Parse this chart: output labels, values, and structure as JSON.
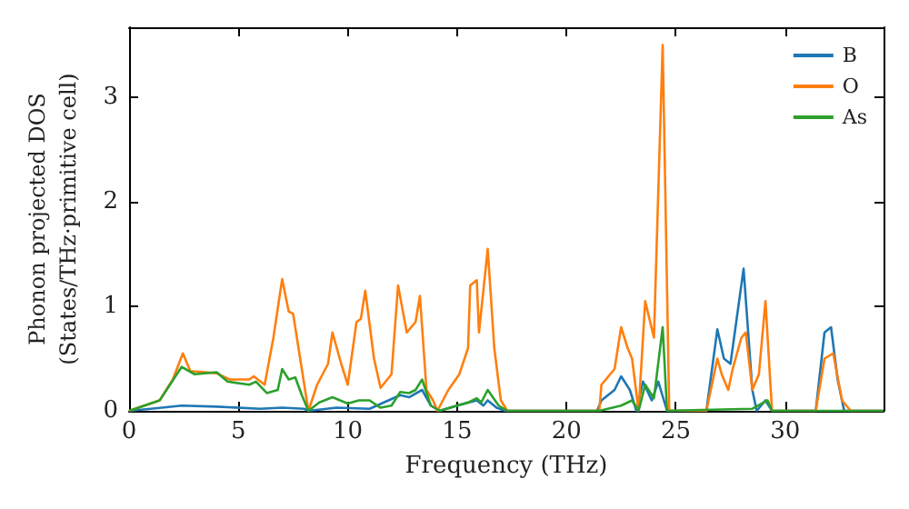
{
  "chart_data": {
    "type": "line",
    "xlabel": "Frequency (THz)",
    "ylabel": "Phonon projected DOS\n(States/THz·primitive cell)",
    "xlim": [
      0,
      34.5
    ],
    "xticks": [
      0,
      5,
      10,
      15,
      20,
      25,
      30
    ],
    "ylim": [
      0,
      3.67
    ],
    "yticks": [
      0,
      1,
      2,
      3
    ],
    "grid": false,
    "legend": "top right",
    "marker": "none",
    "line_style": "solid",
    "series": [
      {
        "name": "B",
        "color": "#1f77b4",
        "x": [
          0,
          1,
          2.4,
          4,
          6,
          7,
          8,
          8.2,
          9.5,
          11,
          12.4,
          12.8,
          13.4,
          13.8,
          14.2,
          15,
          15.9,
          16.2,
          16.4,
          16.8,
          17.2,
          21.4,
          21.6,
          22.2,
          22.5,
          22.9,
          23.2,
          23.5,
          23.9,
          24.2,
          24.6,
          26.4,
          26.9,
          27.2,
          27.5,
          28.1,
          28.5,
          28.7,
          29.1,
          29.4,
          31.4,
          31.8,
          32.1,
          32.4,
          32.7,
          34.5
        ],
        "values": [
          0,
          0.02,
          0.05,
          0.04,
          0.02,
          0.03,
          0.02,
          0,
          0.03,
          0.02,
          0.15,
          0.13,
          0.2,
          0.05,
          0,
          0.05,
          0.1,
          0.05,
          0.1,
          0.03,
          0,
          0,
          0.1,
          0.2,
          0.33,
          0.2,
          0,
          0.28,
          0.1,
          0.28,
          0,
          0,
          0.78,
          0.5,
          0.45,
          1.36,
          0.2,
          0,
          0.1,
          0,
          0,
          0.75,
          0.8,
          0.3,
          0,
          0
        ]
      },
      {
        "name": "O",
        "color": "#ff7f0e",
        "x": [
          0,
          1.4,
          2.0,
          2.46,
          2.8,
          4,
          4.6,
          5.5,
          5.7,
          6.2,
          6.6,
          7.0,
          7.3,
          7.5,
          8.2,
          8.6,
          9.1,
          9.3,
          9.7,
          10.0,
          10.4,
          10.6,
          10.8,
          11.2,
          11.5,
          12.0,
          12.3,
          12.7,
          13.1,
          13.3,
          13.6,
          13.9,
          14.1,
          14.6,
          15.1,
          15.5,
          15.6,
          15.9,
          16.0,
          16.4,
          16.7,
          17.0,
          17.3,
          21.5,
          21.6,
          22.2,
          22.5,
          22.8,
          23.0,
          23.3,
          23.6,
          24.0,
          24.4,
          24.7,
          26.4,
          26.9,
          27.1,
          27.4,
          27.6,
          28.0,
          28.2,
          28.5,
          28.8,
          29.1,
          29.4,
          31.4,
          31.8,
          32.2,
          32.6,
          33.0,
          34.5
        ],
        "values": [
          0,
          0.1,
          0.3,
          0.55,
          0.38,
          0.36,
          0.3,
          0.3,
          0.33,
          0.25,
          0.7,
          1.26,
          0.95,
          0.93,
          0,
          0.25,
          0.45,
          0.75,
          0.45,
          0.25,
          0.85,
          0.88,
          1.15,
          0.5,
          0.22,
          0.35,
          1.2,
          0.75,
          0.85,
          1.1,
          0.2,
          0.1,
          0,
          0.2,
          0.35,
          0.6,
          1.2,
          1.25,
          0.75,
          1.55,
          0.6,
          0.1,
          0,
          0,
          0.25,
          0.4,
          0.8,
          0.6,
          0.5,
          0,
          1.05,
          0.7,
          3.5,
          0,
          0,
          0.5,
          0.35,
          0.2,
          0.4,
          0.7,
          0.75,
          0.2,
          0.35,
          1.05,
          0,
          0,
          0.5,
          0.55,
          0.1,
          0,
          0
        ]
      },
      {
        "name": "As",
        "color": "#2ca02c",
        "x": [
          0,
          1.4,
          2.4,
          3,
          4,
          4.5,
          5.5,
          5.8,
          6.3,
          6.8,
          7.0,
          7.3,
          7.6,
          7.9,
          8.2,
          8.7,
          9.3,
          10,
          10.5,
          11,
          11.5,
          12,
          12.4,
          12.8,
          13.1,
          13.4,
          13.8,
          14.2,
          15,
          15.5,
          15.9,
          16.1,
          16.4,
          16.9,
          17.3,
          21.5,
          22.5,
          23,
          23.3,
          23.6,
          24.0,
          24.4,
          24.6,
          28.5,
          29.2,
          29.4,
          34.5
        ],
        "values": [
          0,
          0.1,
          0.42,
          0.35,
          0.37,
          0.28,
          0.25,
          0.28,
          0.17,
          0.2,
          0.4,
          0.3,
          0.32,
          0.15,
          0,
          0.08,
          0.13,
          0.07,
          0.1,
          0.1,
          0.03,
          0.05,
          0.18,
          0.17,
          0.2,
          0.3,
          0.05,
          0,
          0.05,
          0.08,
          0.12,
          0.08,
          0.2,
          0.05,
          0,
          0,
          0.05,
          0.1,
          0,
          0.25,
          0.12,
          0.8,
          0,
          0.02,
          0.1,
          0,
          0
        ]
      }
    ]
  }
}
